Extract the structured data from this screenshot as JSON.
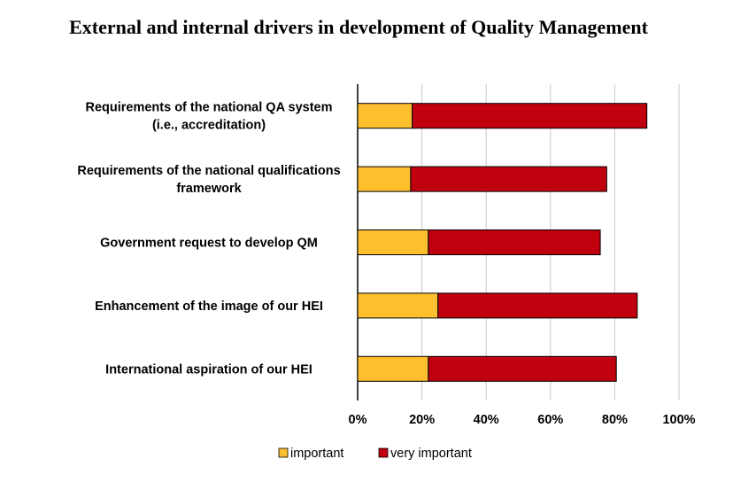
{
  "chart_data": {
    "type": "bar",
    "orientation": "horizontal",
    "stacked": true,
    "title": "External and internal drivers in development of Quality Management",
    "categories": [
      [
        "Requirements of the national QA system",
        "(i.e., accreditation)"
      ],
      [
        "Requirements of the national qualifications",
        "framework"
      ],
      [
        "Government request to develop QM"
      ],
      [
        "Enhancement of the image of our HEI"
      ],
      [
        "International aspiration of our HEI"
      ]
    ],
    "series": [
      {
        "name": "important",
        "color": "#FDBF2D",
        "values": [
          17,
          16.5,
          22,
          25,
          22
        ]
      },
      {
        "name": "very important",
        "color": "#C0000F",
        "values": [
          73,
          61,
          53.5,
          62,
          58.5
        ]
      }
    ],
    "xlim": [
      0,
      100
    ],
    "xticks": [
      "0%",
      "20%",
      "40%",
      "60%",
      "80%",
      "100%"
    ],
    "grid": true,
    "legend_position": "bottom"
  }
}
